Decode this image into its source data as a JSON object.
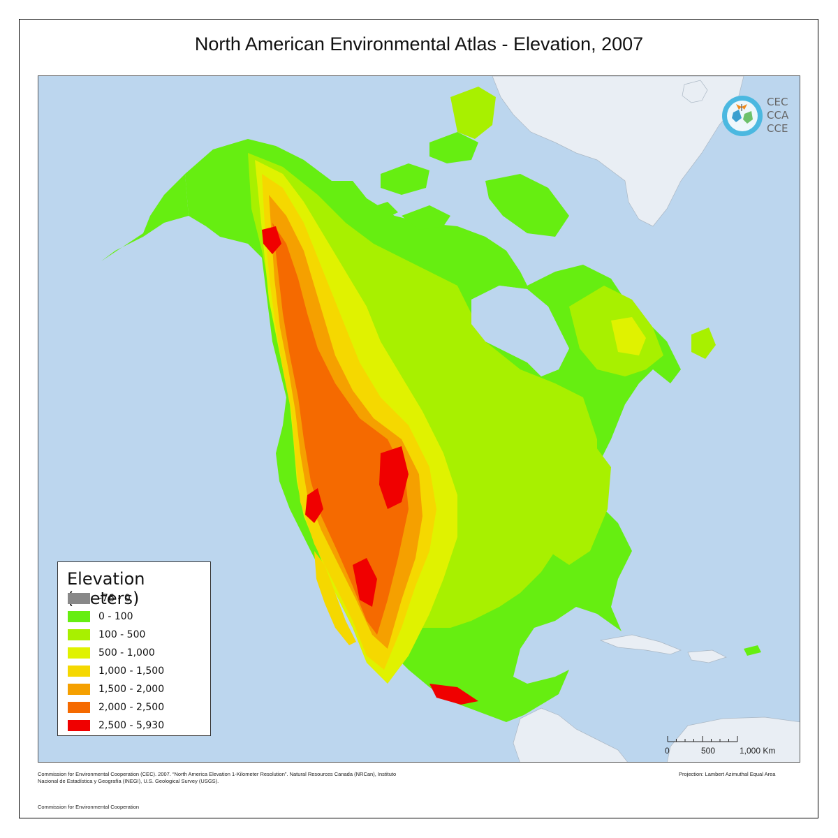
{
  "title": "North American Environmental Atlas - Elevation, 2007",
  "colors": {
    "ocean": "#bcd6ee",
    "greenland": "#e9eef4",
    "land_low": "#66ee11",
    "land_100": "#a8f000",
    "land_500": "#e0f200",
    "land_1000": "#f5d800",
    "land_1500": "#f5a000",
    "land_2000": "#f56a00",
    "land_2500": "#f00000"
  },
  "legend": {
    "title": "Elevation (meters)",
    "items": [
      {
        "label": "-76 - 0",
        "color": "#888888"
      },
      {
        "label": "0 - 100",
        "color": "#66ee11"
      },
      {
        "label": "100 - 500",
        "color": "#a8f000"
      },
      {
        "label": "500 - 1,000",
        "color": "#e0f200"
      },
      {
        "label": "1,000 - 1,500",
        "color": "#f5d800"
      },
      {
        "label": "1,500 - 2,000",
        "color": "#f5a000"
      },
      {
        "label": "2,000 - 2,500",
        "color": "#f56a00"
      },
      {
        "label": "2,500 - 5,930",
        "color": "#f00000"
      }
    ]
  },
  "logo": {
    "lines": [
      "CEC",
      "CCA",
      "CCE"
    ],
    "icon": "monarch-butterfly-globe-icon"
  },
  "scale": {
    "labels": [
      "0",
      "500",
      "1,000 Km"
    ]
  },
  "citation": "Commission for Environmental Cooperation (CEC). 2007. “North America Elevation 1-Kilometer Resolution”. Natural Resources Canada (NRCan), Instituto Nacional de Estadística y Geografía (INEGI), U.S. Geological Survey (USGS).",
  "projection": "Projection: Lambert Azimuthal Equal Area",
  "footer_org": "Commission for Environmental Cooperation"
}
